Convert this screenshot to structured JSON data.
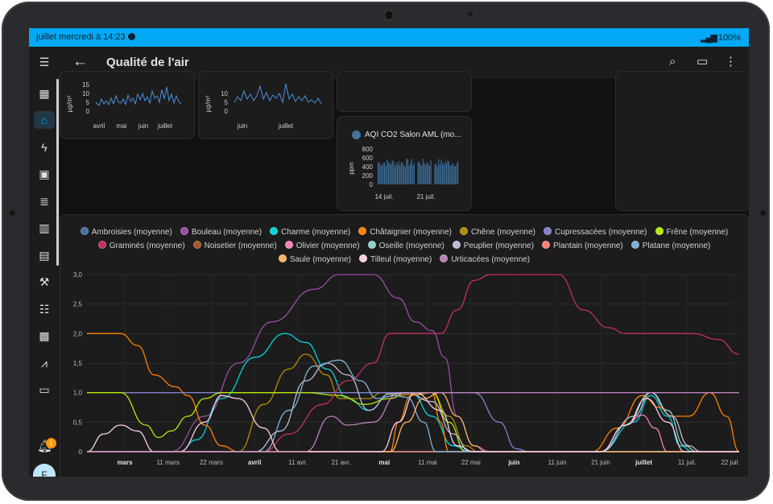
{
  "status_bar": {
    "time_text": "juillet mercredi à 14:23",
    "battery_text": "100%"
  },
  "app_bar": {
    "title": "Qualité de l'air"
  },
  "notifications": {
    "count": "1"
  },
  "user": {
    "initial": "F"
  },
  "mini_cards": {
    "pm_a": {
      "ylabel": "µg/m³",
      "yticks": [
        "15",
        "10",
        "5",
        "0"
      ],
      "xticks": [
        "avril",
        "mai",
        "juin",
        "juillet"
      ]
    },
    "pm_b": {
      "ylabel": "µg/m³",
      "yticks": [
        "10",
        "5",
        "0"
      ],
      "xticks": [
        "juin",
        "juillet"
      ]
    },
    "co2": {
      "title": "AQI CO2 Salon AML (mo...",
      "ylabel": "ppm",
      "yticks": [
        "800",
        "600",
        "400",
        "200",
        "0"
      ],
      "xticks": [
        "14 juil.",
        "21 juil."
      ]
    }
  },
  "chart_data": {
    "type": "line",
    "yticks": [
      "3,0",
      "2,5",
      "2,0",
      "1,5",
      "1,0",
      "0,5",
      "0"
    ],
    "ylim": [
      0,
      3
    ],
    "xticks": [
      {
        "label": "mars",
        "bold": true
      },
      {
        "label": "11 mars",
        "bold": false
      },
      {
        "label": "22 mars",
        "bold": false
      },
      {
        "label": "avril",
        "bold": true
      },
      {
        "label": "11 avr.",
        "bold": false
      },
      {
        "label": "21 avr.",
        "bold": false
      },
      {
        "label": "mai",
        "bold": true
      },
      {
        "label": "11 mai",
        "bold": false
      },
      {
        "label": "22 mai",
        "bold": false
      },
      {
        "label": "juin",
        "bold": true
      },
      {
        "label": "11 juin",
        "bold": false
      },
      {
        "label": "21 juin",
        "bold": false
      },
      {
        "label": "juillet",
        "bold": true
      },
      {
        "label": "11 juil.",
        "bold": false
      },
      {
        "label": "22 juil.",
        "bold": false
      }
    ],
    "x_range_days": [
      -12,
      143
    ],
    "series": [
      {
        "name": "Ambroisies (moyenne)",
        "color": "#44739e",
        "points": [
          [
            -12,
            0
          ],
          [
            143,
            0
          ]
        ]
      },
      {
        "name": "Bouleau (moyenne)",
        "color": "#984ea3",
        "points": [
          [
            -12,
            0
          ],
          [
            8,
            0
          ],
          [
            16,
            0.6
          ],
          [
            24,
            1.5
          ],
          [
            32,
            2.2
          ],
          [
            42,
            2.75
          ],
          [
            48,
            3
          ],
          [
            56,
            3
          ],
          [
            62,
            2.6
          ],
          [
            66,
            2.2
          ],
          [
            70,
            2.05
          ],
          [
            73,
            1.6
          ],
          [
            76,
            0.6
          ],
          [
            80,
            0.1
          ],
          [
            84,
            0
          ],
          [
            143,
            0
          ]
        ]
      },
      {
        "name": "Charme (moyenne)",
        "color": "#00d2d5",
        "points": [
          [
            -12,
            0
          ],
          [
            10,
            0
          ],
          [
            14,
            0.2
          ],
          [
            20,
            0.9
          ],
          [
            28,
            1.6
          ],
          [
            35,
            2.0
          ],
          [
            40,
            1.85
          ],
          [
            45,
            1.4
          ],
          [
            50,
            0.9
          ],
          [
            55,
            0.7
          ],
          [
            60,
            0.98
          ],
          [
            65,
            1.0
          ],
          [
            70,
            0.6
          ],
          [
            75,
            0.1
          ],
          [
            79,
            0
          ],
          [
            110,
            0
          ],
          [
            118,
            0.5
          ],
          [
            122,
            0.95
          ],
          [
            126,
            0.6
          ],
          [
            129,
            0.1
          ],
          [
            132,
            0
          ],
          [
            143,
            0
          ]
        ]
      },
      {
        "name": "Châtaignier (moyenne)",
        "color": "#ff7f00",
        "points": [
          [
            -12,
            2
          ],
          [
            -4,
            2
          ],
          [
            0,
            1.8
          ],
          [
            4,
            1.3
          ],
          [
            9,
            1.1
          ],
          [
            12,
            0.95
          ],
          [
            16,
            0.45
          ],
          [
            20,
            0.1
          ],
          [
            24,
            0
          ],
          [
            60,
            0
          ],
          [
            62,
            0.5
          ],
          [
            65,
            0.95
          ],
          [
            70,
            1.0
          ],
          [
            72,
            0.5
          ],
          [
            74,
            0
          ],
          [
            108,
            0
          ],
          [
            114,
            0.4
          ],
          [
            120,
            0.95
          ],
          [
            124,
            0.75
          ],
          [
            127,
            0.6
          ],
          [
            131,
            0.6
          ],
          [
            136,
            1.0
          ],
          [
            140,
            0.6
          ],
          [
            143,
            0
          ]
        ]
      },
      {
        "name": "Chêne (moyenne)",
        "color": "#af8d00",
        "points": [
          [
            -12,
            0
          ],
          [
            24,
            0
          ],
          [
            30,
            0.8
          ],
          [
            36,
            1.4
          ],
          [
            40,
            1.65
          ],
          [
            45,
            1.3
          ],
          [
            48,
            0.9
          ],
          [
            55,
            0.9
          ],
          [
            58,
            1.0
          ],
          [
            62,
            0.95
          ],
          [
            66,
            0.98
          ],
          [
            70,
            1.0
          ],
          [
            74,
            0.6
          ],
          [
            78,
            0.1
          ],
          [
            81,
            0
          ],
          [
            143,
            0
          ]
        ]
      },
      {
        "name": "Cupressacées (moyenne)",
        "color": "#7f80cd",
        "points": [
          [
            -12,
            1
          ],
          [
            70,
            1
          ],
          [
            80,
            1
          ],
          [
            86,
            0.5
          ],
          [
            90,
            0.05
          ],
          [
            93,
            0
          ],
          [
            143,
            0
          ]
        ]
      },
      {
        "name": "Frêne (moyenne)",
        "color": "#b3e900",
        "points": [
          [
            -12,
            1
          ],
          [
            -4,
            1
          ],
          [
            2,
            0.45
          ],
          [
            5,
            0.24
          ],
          [
            8,
            0.35
          ],
          [
            12,
            0.6
          ],
          [
            16,
            0.9
          ],
          [
            20,
            1.0
          ],
          [
            40,
            1.0
          ],
          [
            48,
            0.95
          ],
          [
            54,
            0.8
          ],
          [
            60,
            0.9
          ],
          [
            64,
            1
          ],
          [
            70,
            1
          ],
          [
            74,
            0.5
          ],
          [
            78,
            0
          ],
          [
            143,
            0
          ]
        ]
      },
      {
        "name": "Graminés (moyenne)",
        "color": "#c42e60",
        "points": [
          [
            -12,
            0
          ],
          [
            30,
            0
          ],
          [
            36,
            0.3
          ],
          [
            44,
            0.8
          ],
          [
            50,
            1.2
          ],
          [
            56,
            1.5
          ],
          [
            60,
            2.0
          ],
          [
            64,
            2.0
          ],
          [
            72,
            2.0
          ],
          [
            76,
            2.4
          ],
          [
            80,
            2.9
          ],
          [
            84,
            3.0
          ],
          [
            100,
            3.0
          ],
          [
            106,
            2.4
          ],
          [
            112,
            2.1
          ],
          [
            116,
            2.0
          ],
          [
            132,
            2.0
          ],
          [
            138,
            1.9
          ],
          [
            143,
            1.65
          ]
        ]
      },
      {
        "name": "Noisetier (moyenne)",
        "color": "#a65628",
        "points": [
          [
            -12,
            0
          ],
          [
            143,
            0
          ]
        ]
      },
      {
        "name": "Olivier (moyenne)",
        "color": "#f781bf",
        "points": [
          [
            -12,
            0
          ],
          [
            110,
            0
          ],
          [
            116,
            0.45
          ],
          [
            120,
            0.62
          ],
          [
            123,
            0.4
          ],
          [
            126,
            0
          ],
          [
            143,
            0
          ]
        ]
      },
      {
        "name": "Oseille (moyenne)",
        "color": "#8dd3c7",
        "points": [
          [
            -12,
            0
          ],
          [
            110,
            0
          ],
          [
            116,
            0.45
          ],
          [
            122,
            1.0
          ],
          [
            126,
            0.7
          ],
          [
            130,
            0.1
          ],
          [
            133,
            0
          ],
          [
            143,
            0
          ]
        ]
      },
      {
        "name": "Peuplier (moyenne)",
        "color": "#bebada",
        "points": [
          [
            -12,
            0
          ],
          [
            28,
            0
          ],
          [
            34,
            0.35
          ],
          [
            40,
            1.2
          ],
          [
            45,
            1.5
          ],
          [
            50,
            1.3
          ],
          [
            55,
            0.7
          ],
          [
            60,
            0.98
          ],
          [
            64,
            1.0
          ],
          [
            70,
            0.85
          ],
          [
            75,
            0.3
          ],
          [
            79,
            0
          ],
          [
            110,
            0
          ],
          [
            118,
            0.6
          ],
          [
            122,
            1.0
          ],
          [
            127,
            0.6
          ],
          [
            131,
            0.1
          ],
          [
            134,
            0
          ],
          [
            143,
            0
          ]
        ]
      },
      {
        "name": "Plantain (moyenne)",
        "color": "#fb8072",
        "points": [
          [
            -12,
            0
          ],
          [
            143,
            0
          ]
        ]
      },
      {
        "name": "Platane (moyenne)",
        "color": "#80b1d3",
        "points": [
          [
            -12,
            0
          ],
          [
            30,
            0
          ],
          [
            36,
            0.7
          ],
          [
            42,
            1.45
          ],
          [
            48,
            1.55
          ],
          [
            53,
            1.2
          ],
          [
            57,
            0.9
          ],
          [
            61,
            0.95
          ],
          [
            64,
            0.92
          ],
          [
            68,
            0.5
          ],
          [
            71,
            0
          ],
          [
            143,
            0
          ]
        ]
      },
      {
        "name": "Saule (moyenne)",
        "color": "#fdb462",
        "points": [
          [
            -12,
            0
          ],
          [
            60,
            0
          ],
          [
            64,
            0.5
          ],
          [
            68,
            0.9
          ],
          [
            72,
            1.0
          ],
          [
            76,
            0.6
          ],
          [
            80,
            0.1
          ],
          [
            83,
            0
          ],
          [
            143,
            0
          ]
        ]
      },
      {
        "name": "Tilleul (moyenne)",
        "color": "#fccde5",
        "points": [
          [
            -12,
            0
          ],
          [
            -8,
            0.3
          ],
          [
            -4,
            0.45
          ],
          [
            0,
            0.35
          ],
          [
            4,
            0
          ],
          [
            10,
            0
          ],
          [
            16,
            0.5
          ],
          [
            20,
            0.95
          ],
          [
            24,
            0.9
          ],
          [
            30,
            0.4
          ],
          [
            34,
            0
          ],
          [
            58,
            0
          ],
          [
            62,
            0.5
          ],
          [
            66,
            1.0
          ],
          [
            72,
            0.7
          ],
          [
            76,
            0.1
          ],
          [
            80,
            0
          ],
          [
            110,
            0
          ],
          [
            116,
            0.45
          ],
          [
            121,
            0.9
          ],
          [
            126,
            0.5
          ],
          [
            130,
            0
          ],
          [
            143,
            0
          ]
        ]
      },
      {
        "name": "Urticacées (moyenne)",
        "color": "#bc80bd",
        "points": [
          [
            -12,
            0
          ],
          [
            40,
            0
          ],
          [
            46,
            0.6
          ],
          [
            50,
            0.45
          ],
          [
            56,
            0.5
          ],
          [
            62,
            0.98
          ],
          [
            66,
            1.0
          ],
          [
            143,
            1.0
          ]
        ]
      }
    ]
  }
}
